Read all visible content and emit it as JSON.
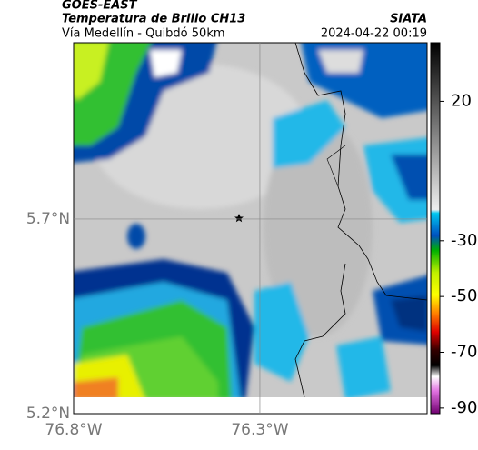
{
  "header": {
    "title": "GOES-EAST",
    "subtitle": "Temperatura de Brillo CH13",
    "route": "Vía Medellín - Quibdó 50km",
    "source": "SIATA",
    "timestamp": "2024-04-22 00:19"
  },
  "map": {
    "xlim": [
      -76.8,
      -75.851
    ],
    "ylim": [
      5.2,
      6.153
    ],
    "xticks": [
      {
        "value": -76.8,
        "label": "76.8°W"
      },
      {
        "value": -76.3,
        "label": "76.3°W"
      }
    ],
    "yticks": [
      {
        "value": 5.2,
        "label": "5.2°N"
      },
      {
        "value": 5.7,
        "label": "5.7°N"
      }
    ],
    "grid": true
  },
  "colorbar": {
    "lim": [
      -92,
      41
    ],
    "ticks": [
      20,
      -30,
      -50,
      -70,
      -90
    ]
  }
}
